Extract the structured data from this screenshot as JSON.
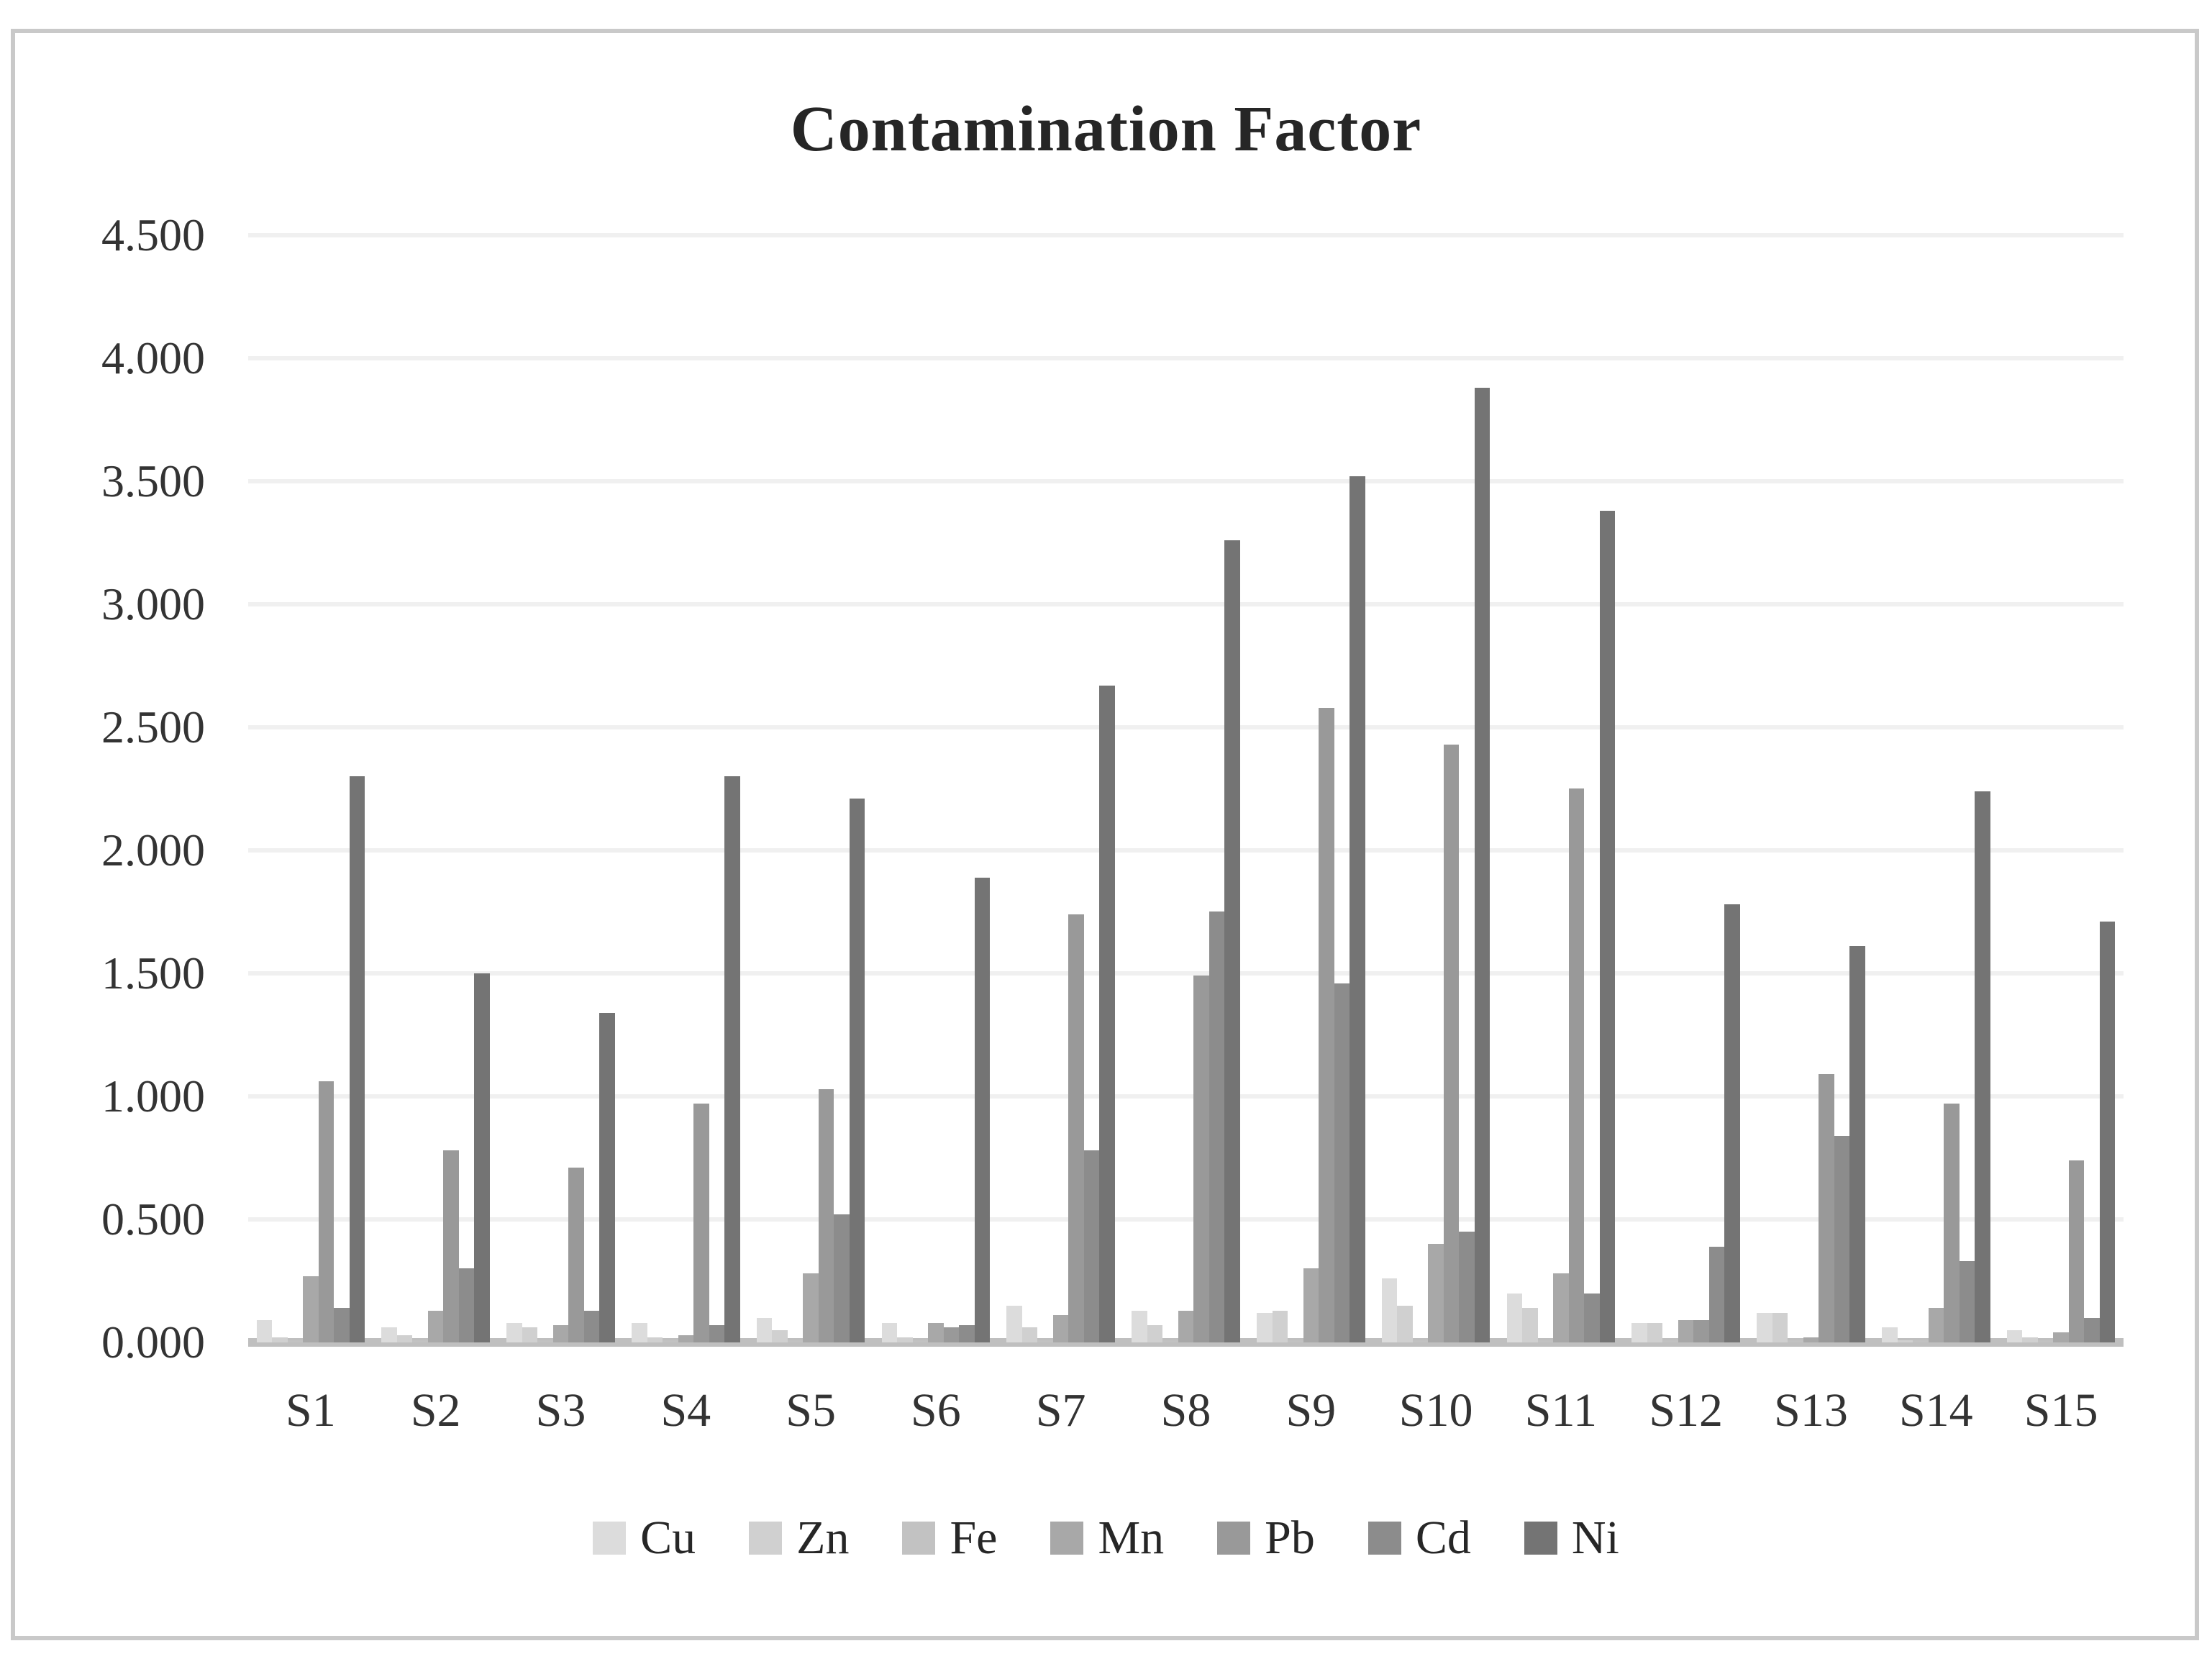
{
  "chart_data": {
    "type": "bar",
    "title": "Contamination Factor",
    "categories": [
      "S1",
      "S2",
      "S3",
      "S4",
      "S5",
      "S6",
      "S7",
      "S8",
      "S9",
      "S10",
      "S11",
      "S12",
      "S13",
      "S14",
      "S15"
    ],
    "series": [
      {
        "name": "Cu",
        "color": "#dcdcdc",
        "values": [
          0.09,
          0.06,
          0.08,
          0.08,
          0.1,
          0.08,
          0.15,
          0.13,
          0.12,
          0.26,
          0.2,
          0.08,
          0.12,
          0.06,
          0.05
        ]
      },
      {
        "name": "Zn",
        "color": "#d0d0d0",
        "values": [
          0.02,
          0.03,
          0.06,
          0.02,
          0.05,
          0.02,
          0.06,
          0.07,
          0.13,
          0.15,
          0.14,
          0.08,
          0.12,
          0.01,
          0.02
        ]
      },
      {
        "name": "Fe",
        "color": "#c2c2c2",
        "values": [
          0.01,
          0.01,
          0.01,
          0.01,
          0.01,
          0.01,
          0.01,
          0.01,
          0.01,
          0.01,
          0.01,
          0.01,
          0.01,
          0.01,
          0.01
        ]
      },
      {
        "name": "Mn",
        "color": "#a8a8a8",
        "values": [
          0.27,
          0.13,
          0.07,
          0.03,
          0.28,
          0.08,
          0.11,
          0.13,
          0.3,
          0.4,
          0.28,
          0.09,
          0.02,
          0.14,
          0.04
        ]
      },
      {
        "name": "Pb",
        "color": "#999999",
        "values": [
          1.06,
          0.78,
          0.71,
          0.97,
          1.03,
          0.06,
          1.74,
          1.49,
          2.58,
          2.43,
          2.25,
          0.09,
          1.09,
          0.97,
          0.74
        ]
      },
      {
        "name": "Cd",
        "color": "#8c8c8c",
        "values": [
          0.14,
          0.3,
          0.13,
          0.07,
          0.52,
          0.07,
          0.78,
          1.75,
          1.46,
          0.45,
          0.2,
          0.39,
          0.84,
          0.33,
          0.1
        ]
      },
      {
        "name": "Ni",
        "color": "#747474",
        "values": [
          2.3,
          1.5,
          1.34,
          2.3,
          2.21,
          1.89,
          2.67,
          3.26,
          3.52,
          3.88,
          3.38,
          1.78,
          1.61,
          2.24,
          1.71
        ]
      }
    ],
    "ylabel": "",
    "xlabel": "",
    "ylim": [
      0,
      4.5
    ],
    "ytick_step": 0.5,
    "ytick_labels": [
      "0.000",
      "0.500",
      "1.000",
      "1.500",
      "2.000",
      "2.500",
      "3.000",
      "3.500",
      "4.000",
      "4.500"
    ],
    "grid": "horizontal",
    "legend_position": "bottom"
  }
}
